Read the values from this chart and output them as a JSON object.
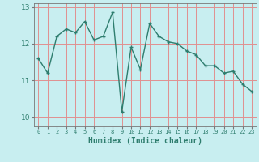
{
  "xlabel": "Humidex (Indice chaleur)",
  "x": [
    0,
    1,
    2,
    3,
    4,
    5,
    6,
    7,
    8,
    9,
    10,
    11,
    12,
    13,
    14,
    15,
    16,
    17,
    18,
    19,
    20,
    21,
    22,
    23
  ],
  "y": [
    11.6,
    11.2,
    12.2,
    12.4,
    12.3,
    12.6,
    12.1,
    12.2,
    12.85,
    10.15,
    11.9,
    11.3,
    12.55,
    12.2,
    12.05,
    12.0,
    11.8,
    11.7,
    11.4,
    11.4,
    11.2,
    11.25,
    10.9,
    10.7
  ],
  "line_color": "#2e7d6e",
  "bg_color": "#c8eef0",
  "grid_color": "#e8c8c8",
  "ylim": [
    9.75,
    13.1
  ],
  "yticks": [
    10,
    11,
    12,
    13
  ],
  "xticks": [
    0,
    1,
    2,
    3,
    4,
    5,
    6,
    7,
    8,
    9,
    10,
    11,
    12,
    13,
    14,
    15,
    16,
    17,
    18,
    19,
    20,
    21,
    22,
    23
  ],
  "marker": "+",
  "markersize": 3.5,
  "linewidth": 1.0
}
